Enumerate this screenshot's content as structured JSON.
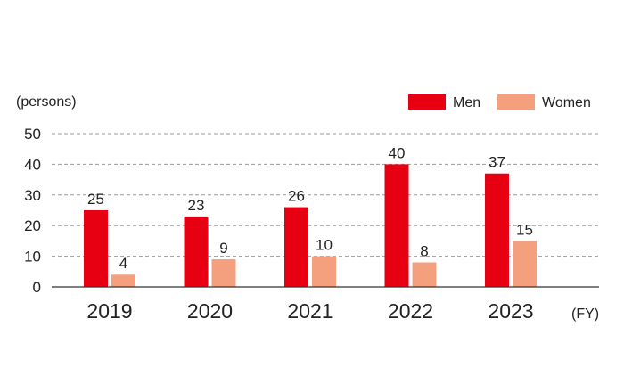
{
  "chart_data": {
    "type": "bar",
    "ylabel": "(persons)",
    "xlabel": "(FY)",
    "ylim": [
      0,
      50
    ],
    "yticks": [
      0,
      10,
      20,
      30,
      40,
      50
    ],
    "grid": "dashed-horizontal",
    "legend_position": "top-right",
    "categories": [
      "2019",
      "2020",
      "2021",
      "2022",
      "2023"
    ],
    "series": [
      {
        "name": "Men",
        "color": "#e60012",
        "values": [
          25,
          23,
          26,
          40,
          37
        ]
      },
      {
        "name": "Women",
        "color": "#f4a07e",
        "values": [
          4,
          9,
          10,
          8,
          15
        ]
      }
    ]
  }
}
